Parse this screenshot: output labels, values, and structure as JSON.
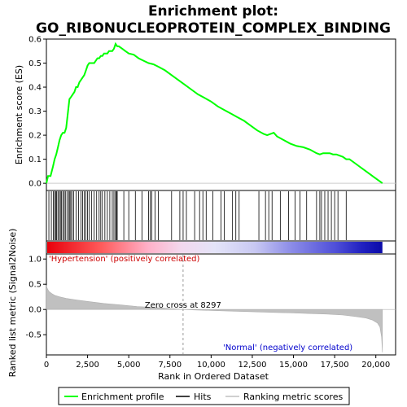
{
  "chart_data": {
    "type": "line",
    "title_line1": "Enrichment plot:",
    "title_line2": "GO_RIBONUCLEOPROTEIN_COMPLEX_BINDING",
    "top_panel": {
      "ylabel": "Enrichment score (ES)",
      "ylim": [
        -0.03,
        0.6
      ],
      "yticks": [
        "0.0",
        "0.1",
        "0.2",
        "0.3",
        "0.4",
        "0.5",
        "0.6"
      ],
      "ytick_values": [
        0.0,
        0.1,
        0.2,
        0.3,
        0.4,
        0.5,
        0.6
      ],
      "series": [
        {
          "name": "Enrichment profile",
          "color": "#00ff00",
          "x": [
            0,
            100,
            250,
            400,
            500,
            600,
            700,
            800,
            900,
            1000,
            1100,
            1200,
            1300,
            1400,
            1500,
            1600,
            1700,
            1800,
            1900,
            2000,
            2100,
            2200,
            2300,
            2400,
            2500,
            2600,
            2700,
            2800,
            2900,
            3000,
            3100,
            3200,
            3300,
            3400,
            3500,
            3600,
            3700,
            3800,
            3900,
            4000,
            4100,
            4200,
            4300,
            4400,
            4600,
            4800,
            5000,
            5300,
            5600,
            5900,
            6200,
            6500,
            6800,
            7200,
            7600,
            8000,
            8400,
            8800,
            9200,
            9600,
            10000,
            10400,
            10800,
            11200,
            11600,
            12000,
            12400,
            12800,
            13200,
            13400,
            13600,
            13800,
            14000,
            14400,
            14800,
            15200,
            15600,
            16000,
            16400,
            16600,
            16800,
            17000,
            17200,
            17400,
            17600,
            17800,
            18000,
            18200,
            18400,
            18700,
            19000,
            19300,
            19600,
            19900,
            20200,
            20400
          ],
          "y": [
            0.0,
            0.03,
            0.03,
            0.07,
            0.1,
            0.12,
            0.15,
            0.18,
            0.2,
            0.21,
            0.21,
            0.23,
            0.29,
            0.35,
            0.36,
            0.37,
            0.38,
            0.4,
            0.4,
            0.42,
            0.43,
            0.44,
            0.45,
            0.47,
            0.49,
            0.5,
            0.5,
            0.5,
            0.5,
            0.51,
            0.52,
            0.52,
            0.53,
            0.53,
            0.54,
            0.54,
            0.54,
            0.55,
            0.55,
            0.55,
            0.56,
            0.58,
            0.57,
            0.57,
            0.56,
            0.55,
            0.54,
            0.535,
            0.52,
            0.51,
            0.5,
            0.495,
            0.485,
            0.47,
            0.45,
            0.43,
            0.41,
            0.39,
            0.37,
            0.355,
            0.34,
            0.32,
            0.305,
            0.29,
            0.275,
            0.26,
            0.24,
            0.22,
            0.205,
            0.2,
            0.205,
            0.21,
            0.195,
            0.18,
            0.165,
            0.155,
            0.15,
            0.14,
            0.125,
            0.12,
            0.125,
            0.125,
            0.125,
            0.12,
            0.12,
            0.115,
            0.11,
            0.1,
            0.1,
            0.085,
            0.07,
            0.055,
            0.04,
            0.025,
            0.01,
            0.0
          ]
        }
      ]
    },
    "hits_panel": {
      "hit_positions": [
        150,
        300,
        420,
        500,
        560,
        620,
        700,
        780,
        850,
        920,
        1000,
        1080,
        1150,
        1250,
        1350,
        1420,
        1480,
        1550,
        1650,
        1800,
        1950,
        2100,
        2200,
        2300,
        2400,
        2500,
        2600,
        2750,
        2900,
        3050,
        3200,
        3300,
        3400,
        3550,
        3700,
        3850,
        4000,
        4100,
        4200,
        4250,
        4300,
        4700,
        5000,
        5400,
        5800,
        6200,
        6300,
        6400,
        6600,
        6800,
        7600,
        8100,
        8300,
        8500,
        9000,
        9300,
        9500,
        9700,
        10100,
        10600,
        10800,
        11300,
        11500,
        11700,
        12900,
        13300,
        13500,
        13700,
        14200,
        14700,
        15100,
        15400,
        15800,
        16400,
        16600,
        16700,
        16900,
        17100,
        17300,
        17500,
        17700,
        18200
      ]
    },
    "bottom_panel": {
      "ylabel": "Ranked list metric (Signal2Noise)",
      "ylim": [
        -0.9,
        1.1
      ],
      "yticks": [
        "1.0",
        "0.5",
        "0.0",
        "-0.5"
      ],
      "ytick_values": [
        1.0,
        0.5,
        0.0,
        -0.5
      ],
      "metric_x": [
        0,
        50,
        150,
        300,
        500,
        800,
        1200,
        1800,
        2500,
        3500,
        4500,
        5500,
        6500,
        7500,
        8297,
        9000,
        10000,
        11000,
        12000,
        13000,
        14000,
        15000,
        16000,
        17000,
        18000,
        18800,
        19400,
        19800,
        20100,
        20250,
        20350,
        20400
      ],
      "metric_y": [
        0.48,
        0.42,
        0.36,
        0.32,
        0.28,
        0.25,
        0.22,
        0.19,
        0.16,
        0.12,
        0.09,
        0.06,
        0.04,
        0.02,
        0.0,
        -0.01,
        -0.02,
        -0.03,
        -0.04,
        -0.05,
        -0.06,
        -0.07,
        -0.08,
        -0.09,
        -0.11,
        -0.14,
        -0.17,
        -0.21,
        -0.27,
        -0.35,
        -0.55,
        -0.85
      ],
      "zero_cross": 8297,
      "zero_cross_label": "Zero cross at 8297",
      "positive_label": "'Hypertension' (positively correlated)",
      "negative_label": "'Normal' (negatively correlated)"
    },
    "xlabel": "Rank in Ordered Dataset",
    "xlim": [
      0,
      21200
    ],
    "xticks": [
      "0",
      "2,500",
      "5,000",
      "7,500",
      "10,000",
      "12,500",
      "15,000",
      "17,500",
      "20,000"
    ],
    "xtick_values": [
      0,
      2500,
      5000,
      7500,
      10000,
      12500,
      15000,
      17500,
      20000
    ],
    "legend": [
      {
        "label": "Enrichment profile",
        "color": "#00ff00"
      },
      {
        "label": "Hits",
        "color": "#000000"
      },
      {
        "label": "Ranking metric scores",
        "color": "#c0c0c0"
      }
    ]
  }
}
